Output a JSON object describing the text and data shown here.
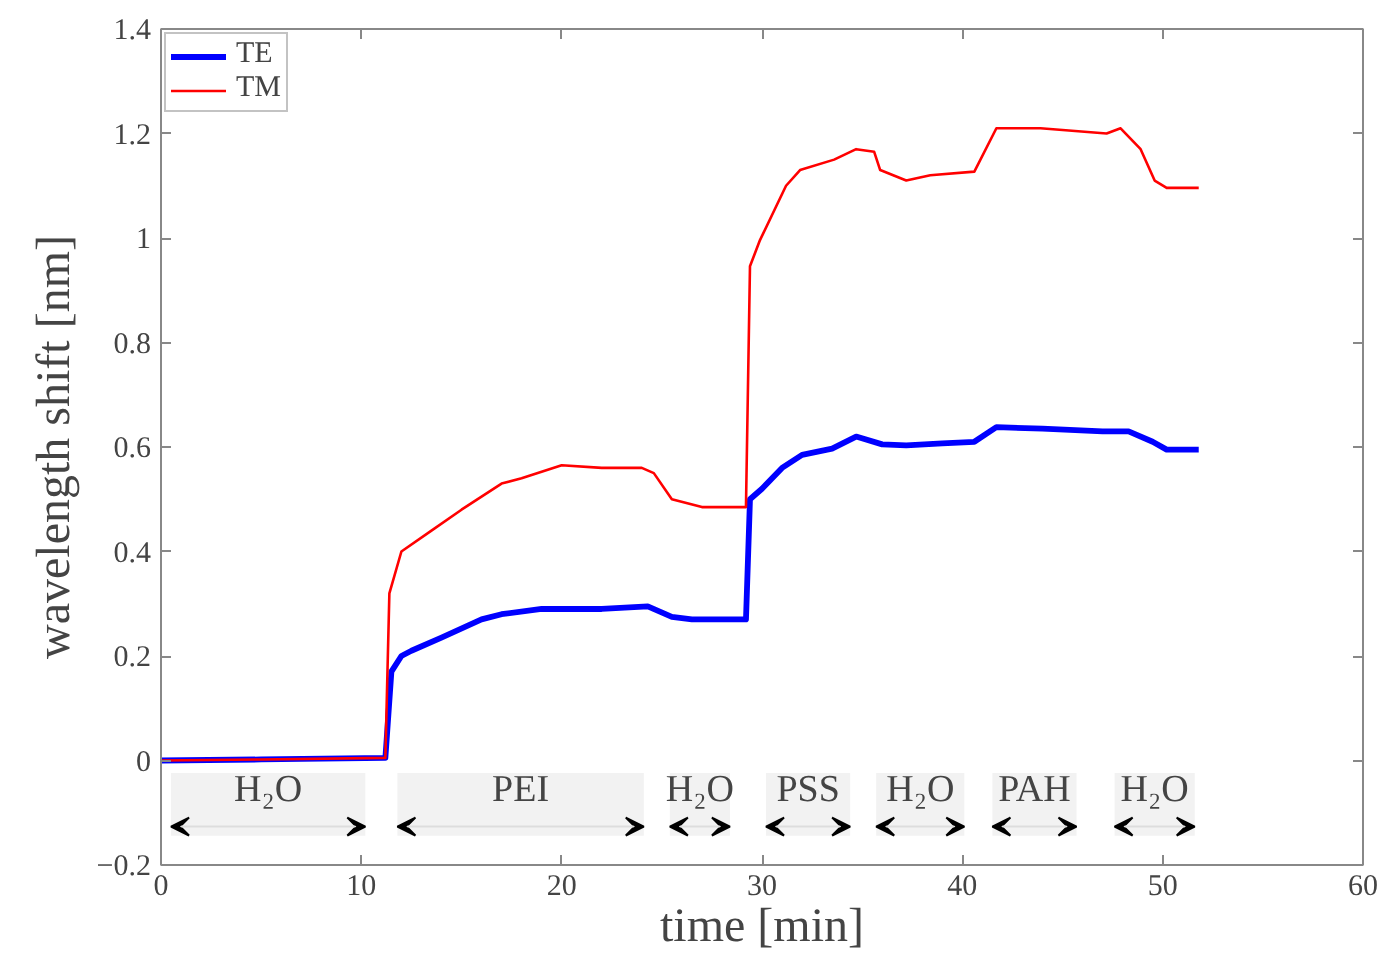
{
  "chart_data": {
    "type": "line",
    "xlabel": "time [min]",
    "ylabel": "wavelength shift [nm]",
    "xlim": [
      0,
      60
    ],
    "ylim": [
      -0.2,
      1.4
    ],
    "xticks": [
      0,
      10,
      20,
      30,
      40,
      50,
      60
    ],
    "yticks": [
      -0.2,
      0,
      0.2,
      0.4,
      0.6,
      0.8,
      1,
      1.2,
      1.4
    ],
    "grid": false,
    "legend": "top left",
    "line_style": "solid",
    "marker": "none",
    "series": [
      {
        "name": "TE",
        "color": "#0000ff",
        "x": [
          0,
          5,
          11.2,
          11.5,
          12,
          12.5,
          14,
          16,
          17,
          19,
          22,
          24.3,
          25.5,
          26.5,
          29.2,
          29.4,
          30,
          31,
          32,
          33.5,
          34.7,
          36,
          37.2,
          39,
          40.6,
          41.7,
          44,
          47,
          48.3,
          49.5,
          50.2,
          51.8
        ],
        "values": [
          0,
          0.002,
          0.005,
          0.17,
          0.2,
          0.21,
          0.235,
          0.27,
          0.28,
          0.29,
          0.29,
          0.295,
          0.275,
          0.27,
          0.27,
          0.5,
          0.52,
          0.56,
          0.585,
          0.597,
          0.62,
          0.605,
          0.603,
          0.607,
          0.61,
          0.638,
          0.635,
          0.63,
          0.63,
          0.61,
          0.595,
          0.595
        ]
      },
      {
        "name": "TM",
        "color": "#ff0000",
        "x": [
          0,
          5,
          11.2,
          11.4,
          12,
          13.5,
          15,
          17,
          18,
          20,
          22,
          24,
          24.6,
          25.5,
          27,
          29.2,
          29.4,
          29.9,
          31.2,
          31.9,
          33.6,
          34.7,
          35.6,
          35.9,
          37.2,
          38.4,
          40.6,
          41.7,
          43.9,
          47.2,
          47.9,
          48.9,
          49.6,
          50.2,
          51.8
        ],
        "values": [
          0,
          0.002,
          0.005,
          0.32,
          0.4,
          0.44,
          0.48,
          0.53,
          0.54,
          0.565,
          0.56,
          0.56,
          0.55,
          0.5,
          0.485,
          0.485,
          0.946,
          0.996,
          1.1,
          1.13,
          1.15,
          1.17,
          1.165,
          1.13,
          1.11,
          1.12,
          1.127,
          1.21,
          1.21,
          1.2,
          1.21,
          1.17,
          1.11,
          1.096,
          1.096
        ]
      }
    ],
    "bands": [
      {
        "axis": "x",
        "from": 0.5,
        "to": 10.2,
        "label": "H₂O",
        "color": "#f2f2f2"
      },
      {
        "axis": "x",
        "from": 11.8,
        "to": 24.1,
        "label": "PEI",
        "color": "#f2f2f2"
      },
      {
        "axis": "x",
        "from": 25.4,
        "to": 28.4,
        "label": "H₂O",
        "color": "#f2f2f2"
      },
      {
        "axis": "x",
        "from": 30.2,
        "to": 34.4,
        "label": "PSS",
        "color": "#f2f2f2"
      },
      {
        "axis": "x",
        "from": 35.7,
        "to": 40.1,
        "label": "H₂O",
        "color": "#f2f2f2"
      },
      {
        "axis": "x",
        "from": 41.5,
        "to": 45.7,
        "label": "PAH",
        "color": "#f2f2f2"
      },
      {
        "axis": "x",
        "from": 47.6,
        "to": 51.6,
        "label": "H₂O",
        "color": "#f2f2f2"
      }
    ]
  }
}
